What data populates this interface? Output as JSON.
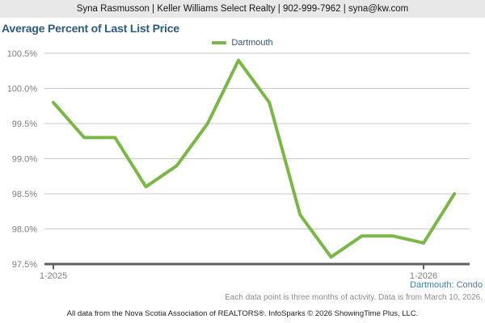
{
  "header": {
    "text": "Syna Rasmusson | Keller Williams Select Realty | 902-999-7962 | syna@kw.com"
  },
  "title": "Average Percent of Last List Price",
  "legend": {
    "label": "Dartmouth",
    "swatch_color": "#7ab648"
  },
  "chart_data": {
    "type": "line",
    "title": "Average Percent of Last List Price",
    "categories": [
      "1-2025",
      "2-2025",
      "3-2025",
      "4-2025",
      "5-2025",
      "6-2025",
      "7-2025",
      "8-2025",
      "9-2025",
      "10-2025",
      "11-2025",
      "12-2025",
      "1-2026",
      "2-2026"
    ],
    "series": [
      {
        "name": "Dartmouth",
        "color": "#7ab648",
        "values": [
          99.8,
          99.3,
          99.3,
          98.6,
          98.9,
          99.5,
          100.4,
          99.8,
          98.2,
          97.6,
          97.9,
          97.9,
          97.8,
          98.5
        ]
      }
    ],
    "yticks": [
      "100.5%",
      "100.0%",
      "99.5%",
      "99.0%",
      "98.5%",
      "98.0%",
      "97.5%"
    ],
    "xticks": [
      {
        "index": 0,
        "label": "1-2025"
      },
      {
        "index": 12,
        "label": "1-2026"
      }
    ],
    "ylim": [
      97.5,
      100.5
    ],
    "ylabel": "",
    "xlabel": "",
    "grid": "horizontal",
    "legend_position": "top-center"
  },
  "footer": {
    "series_caption": "Dartmouth: Condo",
    "note": "Each data point is three months of activity. Data is from March 10, 2026.",
    "attribution": "All data from the Nova Scotia Association of REALTORS®. InfoSparks © 2026 ShowingTime Plus, LLC."
  },
  "colors": {
    "accent_green": "#7ab648",
    "title_blue": "#2c5a7c",
    "caption_blue": "#3d7fae",
    "topbar_gray": "#e8e8e8",
    "gridline_gray": "#c9c9c9",
    "axis_gray": "#5f5f5f",
    "tick_label_gray": "#7d7d7d"
  }
}
